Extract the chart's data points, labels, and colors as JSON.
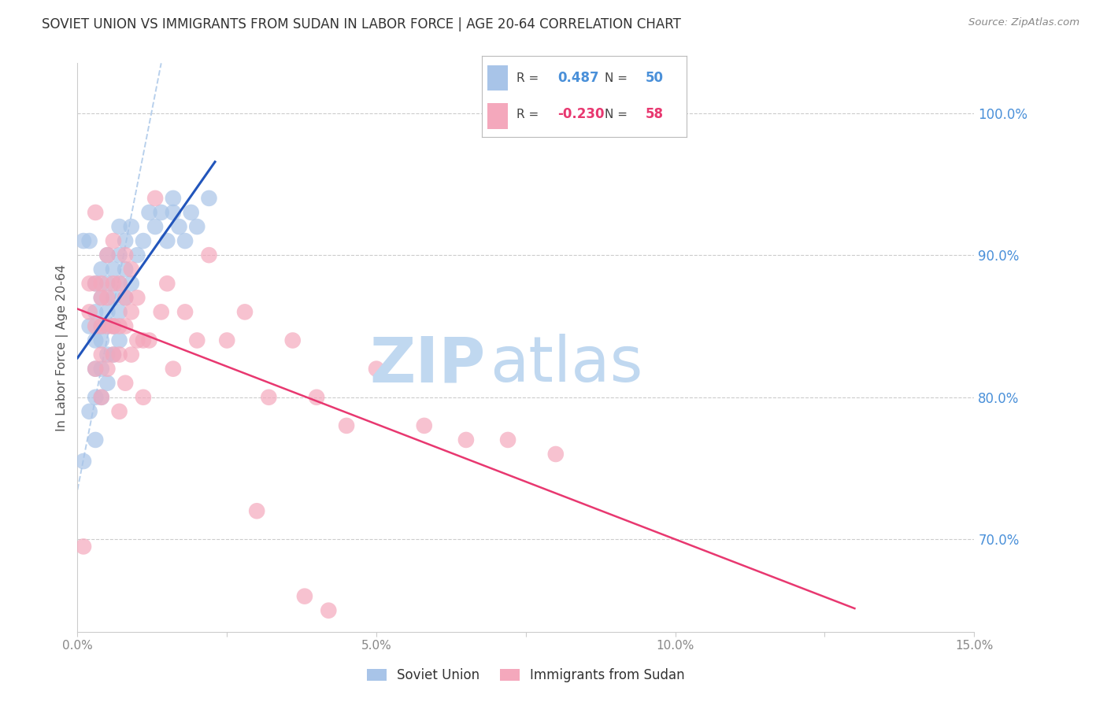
{
  "title": "SOVIET UNION VS IMMIGRANTS FROM SUDAN IN LABOR FORCE | AGE 20-64 CORRELATION CHART",
  "source": "Source: ZipAtlas.com",
  "ylabel": "In Labor Force | Age 20-64",
  "xlim": [
    0.0,
    0.15
  ],
  "ylim": [
    0.635,
    1.035
  ],
  "yticks": [
    0.7,
    0.8,
    0.9,
    1.0
  ],
  "ytick_labels": [
    "70.0%",
    "80.0%",
    "90.0%",
    "100.0%"
  ],
  "xticks": [
    0.0,
    0.025,
    0.05,
    0.075,
    0.1,
    0.125,
    0.15
  ],
  "xtick_major_labels": [
    "0.0%",
    "",
    "5.0%",
    "",
    "10.0%",
    "",
    "15.0%"
  ],
  "soviet_color": "#a8c4e8",
  "sudan_color": "#f4a8bc",
  "soviet_line_color": "#2255bb",
  "sudan_line_color": "#e83870",
  "dashed_line_color": "#b8d0ec",
  "watermark_zip_color": "#c0d8f0",
  "watermark_atlas_color": "#c0d8f0",
  "background_color": "#ffffff",
  "grid_color": "#cccccc",
  "ytick_label_color": "#4a90d9",
  "xtick_label_color": "#888888",
  "title_color": "#333333",
  "source_color": "#888888",
  "legend_border_color": "#bbbbbb",
  "soviet_x": [
    0.001,
    0.001,
    0.002,
    0.002,
    0.002,
    0.003,
    0.003,
    0.003,
    0.003,
    0.003,
    0.003,
    0.004,
    0.004,
    0.004,
    0.004,
    0.004,
    0.004,
    0.005,
    0.005,
    0.005,
    0.005,
    0.005,
    0.005,
    0.006,
    0.006,
    0.006,
    0.006,
    0.007,
    0.007,
    0.007,
    0.007,
    0.007,
    0.008,
    0.008,
    0.008,
    0.009,
    0.009,
    0.01,
    0.011,
    0.012,
    0.013,
    0.014,
    0.015,
    0.016,
    0.016,
    0.017,
    0.018,
    0.019,
    0.02,
    0.022
  ],
  "soviet_y": [
    0.755,
    0.91,
    0.79,
    0.85,
    0.91,
    0.77,
    0.8,
    0.82,
    0.84,
    0.86,
    0.88,
    0.8,
    0.82,
    0.84,
    0.85,
    0.87,
    0.89,
    0.81,
    0.83,
    0.85,
    0.86,
    0.88,
    0.9,
    0.83,
    0.85,
    0.87,
    0.89,
    0.84,
    0.86,
    0.88,
    0.9,
    0.92,
    0.87,
    0.89,
    0.91,
    0.88,
    0.92,
    0.9,
    0.91,
    0.93,
    0.92,
    0.93,
    0.91,
    0.93,
    0.94,
    0.92,
    0.91,
    0.93,
    0.92,
    0.94
  ],
  "sudan_x": [
    0.001,
    0.002,
    0.002,
    0.003,
    0.003,
    0.003,
    0.004,
    0.004,
    0.004,
    0.004,
    0.005,
    0.005,
    0.005,
    0.005,
    0.006,
    0.006,
    0.006,
    0.006,
    0.007,
    0.007,
    0.007,
    0.008,
    0.008,
    0.008,
    0.009,
    0.009,
    0.009,
    0.01,
    0.01,
    0.011,
    0.011,
    0.012,
    0.013,
    0.014,
    0.015,
    0.016,
    0.018,
    0.02,
    0.022,
    0.025,
    0.028,
    0.032,
    0.036,
    0.04,
    0.045,
    0.05,
    0.058,
    0.065,
    0.072,
    0.08,
    0.03,
    0.038,
    0.042,
    0.003,
    0.004,
    0.006,
    0.007,
    0.008
  ],
  "sudan_y": [
    0.695,
    0.86,
    0.88,
    0.82,
    0.85,
    0.88,
    0.8,
    0.83,
    0.85,
    0.87,
    0.82,
    0.85,
    0.87,
    0.9,
    0.83,
    0.85,
    0.88,
    0.91,
    0.83,
    0.85,
    0.88,
    0.85,
    0.87,
    0.9,
    0.83,
    0.86,
    0.89,
    0.84,
    0.87,
    0.8,
    0.84,
    0.84,
    0.94,
    0.86,
    0.88,
    0.82,
    0.86,
    0.84,
    0.9,
    0.84,
    0.86,
    0.8,
    0.84,
    0.8,
    0.78,
    0.82,
    0.78,
    0.77,
    0.77,
    0.76,
    0.72,
    0.66,
    0.65,
    0.93,
    0.88,
    0.85,
    0.79,
    0.81
  ]
}
